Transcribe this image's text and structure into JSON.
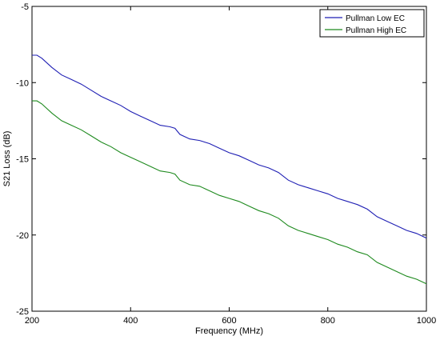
{
  "chart_data": {
    "type": "line",
    "title": "",
    "xlabel": "Frequency (MHz)",
    "ylabel": "S21 Loss (dB)",
    "xlim": [
      200,
      1000
    ],
    "ylim": [
      -25,
      -5
    ],
    "xticks": [
      200,
      400,
      600,
      800,
      1000
    ],
    "yticks": [
      -5,
      -10,
      -15,
      -20,
      -25
    ],
    "grid": false,
    "legend_position": "top-right",
    "series": [
      {
        "name": "Pullman Low EC",
        "color": "#1f1fb4",
        "x": [
          200,
          210,
          220,
          240,
          260,
          280,
          300,
          320,
          340,
          360,
          380,
          400,
          420,
          440,
          460,
          480,
          490,
          500,
          520,
          540,
          560,
          580,
          600,
          620,
          640,
          660,
          680,
          700,
          720,
          740,
          760,
          780,
          800,
          820,
          840,
          860,
          880,
          900,
          920,
          940,
          960,
          980,
          1000
        ],
        "y": [
          -8.2,
          -8.2,
          -8.4,
          -9.0,
          -9.5,
          -9.8,
          -10.1,
          -10.5,
          -10.9,
          -11.2,
          -11.5,
          -11.9,
          -12.2,
          -12.5,
          -12.8,
          -12.9,
          -13.0,
          -13.4,
          -13.7,
          -13.8,
          -14.0,
          -14.3,
          -14.6,
          -14.8,
          -15.1,
          -15.4,
          -15.6,
          -15.9,
          -16.4,
          -16.7,
          -16.9,
          -17.1,
          -17.3,
          -17.6,
          -17.8,
          -18.0,
          -18.3,
          -18.8,
          -19.1,
          -19.4,
          -19.7,
          -19.9,
          -20.2
        ]
      },
      {
        "name": "Pullman High EC",
        "color": "#1e8a1e",
        "x": [
          200,
          210,
          220,
          240,
          260,
          280,
          300,
          320,
          340,
          360,
          380,
          400,
          420,
          440,
          460,
          480,
          490,
          500,
          520,
          540,
          560,
          580,
          600,
          620,
          640,
          660,
          680,
          700,
          720,
          740,
          760,
          780,
          800,
          820,
          840,
          860,
          880,
          900,
          920,
          940,
          960,
          980,
          1000
        ],
        "y": [
          -11.2,
          -11.2,
          -11.4,
          -12.0,
          -12.5,
          -12.8,
          -13.1,
          -13.5,
          -13.9,
          -14.2,
          -14.6,
          -14.9,
          -15.2,
          -15.5,
          -15.8,
          -15.9,
          -16.0,
          -16.4,
          -16.7,
          -16.8,
          -17.1,
          -17.4,
          -17.6,
          -17.8,
          -18.1,
          -18.4,
          -18.6,
          -18.9,
          -19.4,
          -19.7,
          -19.9,
          -20.1,
          -20.3,
          -20.6,
          -20.8,
          -21.1,
          -21.3,
          -21.8,
          -22.1,
          -22.4,
          -22.7,
          -22.9,
          -23.2
        ]
      }
    ]
  }
}
